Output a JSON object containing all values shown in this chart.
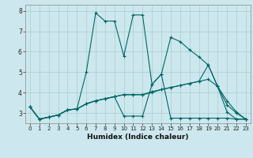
{
  "title": "",
  "xlabel": "Humidex (Indice chaleur)",
  "background_color": "#cce8ee",
  "grid_color": "#aacccc",
  "line_color": "#006666",
  "xlim": [
    -0.5,
    23.5
  ],
  "ylim": [
    2.5,
    8.3
  ],
  "yticks": [
    3,
    4,
    5,
    6,
    7,
    8
  ],
  "xticks": [
    0,
    1,
    2,
    3,
    4,
    5,
    6,
    7,
    8,
    9,
    10,
    11,
    12,
    13,
    14,
    15,
    16,
    17,
    18,
    19,
    20,
    21,
    22,
    23
  ],
  "series": [
    [
      3.3,
      2.7,
      2.8,
      2.9,
      3.15,
      3.2,
      5.0,
      7.9,
      7.5,
      7.5,
      5.8,
      7.8,
      7.8,
      4.4,
      4.9,
      6.7,
      6.5,
      6.1,
      5.75,
      5.35,
      4.3,
      3.4,
      3.0,
      2.7
    ],
    [
      3.3,
      2.7,
      2.8,
      2.9,
      3.15,
      3.2,
      3.45,
      3.6,
      3.7,
      3.8,
      2.85,
      2.85,
      2.85,
      4.4,
      4.9,
      2.75,
      2.75,
      2.75,
      2.75,
      2.75,
      2.75,
      2.75,
      2.7,
      2.7
    ],
    [
      3.3,
      2.7,
      2.8,
      2.9,
      3.15,
      3.2,
      3.45,
      3.6,
      3.7,
      3.8,
      3.9,
      3.9,
      3.9,
      4.0,
      4.15,
      4.25,
      4.35,
      4.45,
      4.55,
      4.65,
      4.3,
      3.05,
      2.7,
      2.7
    ],
    [
      3.3,
      2.7,
      2.8,
      2.9,
      3.15,
      3.2,
      3.45,
      3.6,
      3.7,
      3.8,
      3.9,
      3.9,
      3.9,
      4.05,
      4.15,
      4.25,
      4.35,
      4.45,
      4.55,
      5.35,
      4.3,
      3.6,
      3.05,
      2.7
    ]
  ]
}
